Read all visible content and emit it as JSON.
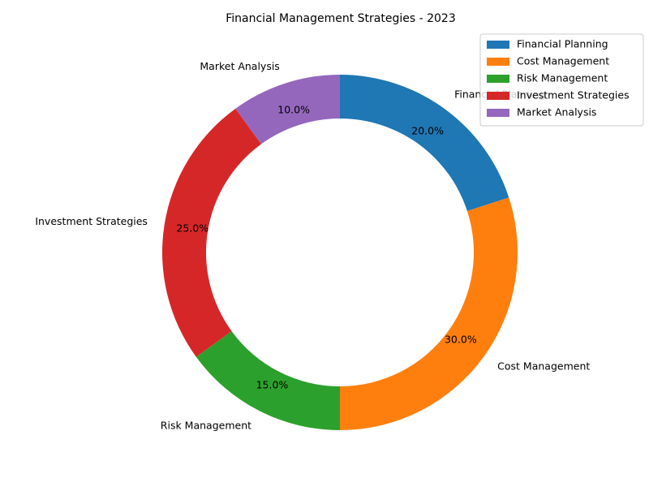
{
  "chart_data": {
    "type": "pie",
    "style": "donut",
    "title": "Financial Management Strategies - 2023",
    "categories": [
      "Financial Planning",
      "Cost Management",
      "Risk Management",
      "Investment Strategies",
      "Market Analysis"
    ],
    "values": [
      20,
      30,
      15,
      25,
      10
    ],
    "percent_labels": [
      "20.0%",
      "30.0%",
      "15.0%",
      "25.0%",
      "10.0%"
    ],
    "colors": [
      "#1f77b4",
      "#ff7f0e",
      "#2ca02c",
      "#d62728",
      "#9467bd"
    ],
    "start_angle_deg": 90,
    "direction": "clockwise",
    "legend": {
      "placement": "top-right",
      "entries": [
        "Financial Planning",
        "Cost Management",
        "Risk Management",
        "Investment Strategies",
        "Market Analysis"
      ]
    }
  }
}
